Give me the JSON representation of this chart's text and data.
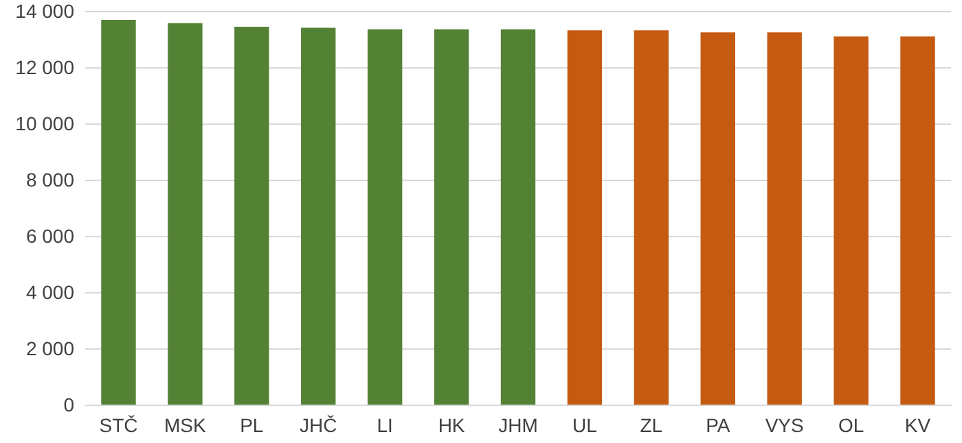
{
  "chart_data": {
    "type": "bar",
    "categories": [
      "STČ",
      "MSK",
      "PL",
      "JHČ",
      "LI",
      "HK",
      "JHM",
      "UL",
      "ZL",
      "PA",
      "VYS",
      "OL",
      "KV"
    ],
    "values": [
      13680,
      13570,
      13440,
      13400,
      13350,
      13350,
      13350,
      13310,
      13310,
      13240,
      13240,
      13090,
      13090
    ],
    "colors": [
      "#548235",
      "#548235",
      "#548235",
      "#548235",
      "#548235",
      "#548235",
      "#548235",
      "#c55a11",
      "#c55a11",
      "#c55a11",
      "#c55a11",
      "#c55a11",
      "#c55a11"
    ],
    "ylim": [
      0,
      14000
    ],
    "yticks": [
      {
        "value": 0,
        "label": "0"
      },
      {
        "value": 2000,
        "label": "2 000"
      },
      {
        "value": 4000,
        "label": "4 000"
      },
      {
        "value": 6000,
        "label": "6 000"
      },
      {
        "value": 8000,
        "label": "8 000"
      },
      {
        "value": 10000,
        "label": "10 000"
      },
      {
        "value": 12000,
        "label": "12 000"
      },
      {
        "value": 14000,
        "label": "14 000"
      }
    ],
    "grid": "y"
  }
}
